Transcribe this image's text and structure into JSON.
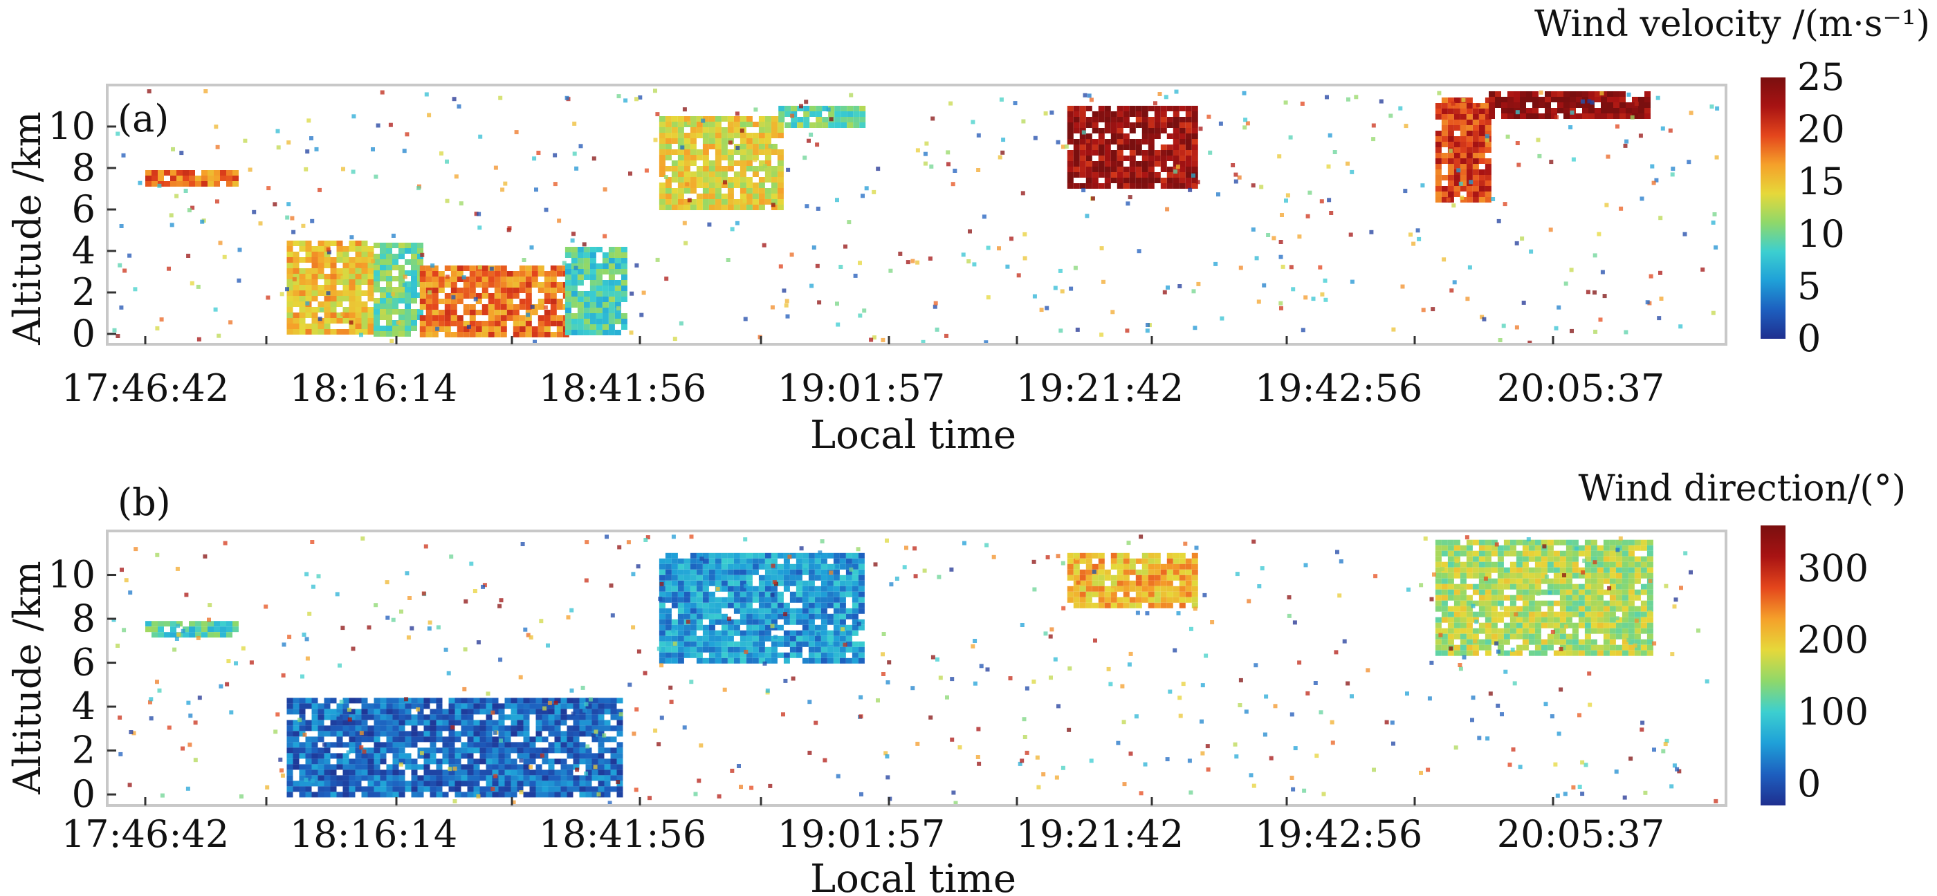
{
  "colormap": [
    "#1f2f8f",
    "#1d5fbf",
    "#1fa0d8",
    "#3ccfd0",
    "#8fd86a",
    "#e6d83a",
    "#f5a02a",
    "#e4461c",
    "#a81313",
    "#7a0f0f"
  ],
  "chart_data": [
    {
      "panel_label": "(a)",
      "type": "heatmap",
      "variable": "wind velocity",
      "colorbar_title": "Wind velocity /(m·s⁻¹)",
      "colorbar_ticks": [
        0,
        5,
        10,
        15,
        20,
        25
      ],
      "clim": [
        0,
        25
      ],
      "xlabel": "Local time",
      "ylabel": "Altitude /km",
      "xticks": [
        "17:46:42",
        "18:16:14",
        "18:41:56",
        "19:01:57",
        "19:21:42",
        "19:42:56",
        "20:05:37"
      ],
      "yticks": [
        0,
        2,
        4,
        6,
        8,
        10
      ],
      "ylim": [
        -0.5,
        12
      ],
      "grid": false,
      "top_boundary_km": [
        8,
        7.8,
        4.5,
        4.3,
        3.2,
        4.2,
        6,
        9,
        10.6,
        11,
        11,
        11,
        11,
        10.8,
        9.5,
        9.8,
        11.6,
        11.6,
        11.6
      ],
      "regions": [
        {
          "time_range": [
            "17:46:42",
            "17:58:00"
          ],
          "alt_km": [
            7.2,
            7.9
          ],
          "value": 18
        },
        {
          "time_range": [
            "18:05:00",
            "18:16:14"
          ],
          "alt_km": [
            0,
            4.5
          ],
          "value": 15
        },
        {
          "time_range": [
            "18:16:14",
            "18:21:00"
          ],
          "alt_km": [
            0,
            4.4
          ],
          "value": 10
        },
        {
          "time_range": [
            "18:21:00",
            "18:36:00"
          ],
          "alt_km": [
            0,
            3.3
          ],
          "value": 18
        },
        {
          "time_range": [
            "18:36:00",
            "18:41:56"
          ],
          "alt_km": [
            0,
            4.2
          ],
          "value": 9
        },
        {
          "time_range": [
            "18:45:00",
            "18:55:00"
          ],
          "alt_km": [
            6,
            10.5
          ],
          "value": 14
        },
        {
          "time_range": [
            "18:55:00",
            "19:01:57"
          ],
          "alt_km": [
            10,
            11
          ],
          "value": 10
        },
        {
          "time_range": [
            "19:19:00",
            "19:30:00"
          ],
          "alt_km": [
            7,
            11
          ],
          "value": 23
        },
        {
          "time_range": [
            "19:52:00",
            "19:57:00"
          ],
          "alt_km": [
            6.5,
            11.4
          ],
          "value": 20
        },
        {
          "time_range": [
            "19:57:00",
            "20:12:00"
          ],
          "alt_km": [
            10.6,
            11.7
          ],
          "value": 24
        }
      ]
    },
    {
      "panel_label": "(b)",
      "type": "heatmap",
      "variable": "wind direction",
      "colorbar_title": "Wind direction/(°)",
      "colorbar_ticks": [
        0,
        100,
        200,
        300
      ],
      "clim": [
        -30,
        360
      ],
      "xlabel": "Local time",
      "ylabel": "Altitude /km",
      "xticks": [
        "17:46:42",
        "18:16:14",
        "18:41:56",
        "19:01:57",
        "19:21:42",
        "19:42:56",
        "20:05:37"
      ],
      "yticks": [
        0,
        2,
        4,
        6,
        8,
        10
      ],
      "ylim": [
        -0.5,
        12
      ],
      "grid": false,
      "top_boundary_km": [
        8,
        7.8,
        4.5,
        4.3,
        3.2,
        4.2,
        6,
        9,
        10.6,
        11,
        11,
        11,
        11,
        10.8,
        9.5,
        9.8,
        11.6,
        11.6,
        11.6
      ],
      "regions": [
        {
          "time_range": [
            "17:46:42",
            "17:58:00"
          ],
          "alt_km": [
            7.2,
            7.9
          ],
          "value": 110
        },
        {
          "time_range": [
            "18:05:00",
            "18:41:56"
          ],
          "alt_km": [
            0,
            4.4
          ],
          "value": 20
        },
        {
          "time_range": [
            "18:45:00",
            "19:01:57"
          ],
          "alt_km": [
            6,
            11
          ],
          "value": 55
        },
        {
          "time_range": [
            "19:19:00",
            "19:30:00"
          ],
          "alt_km": [
            8.5,
            11
          ],
          "value": 215
        },
        {
          "time_range": [
            "19:52:00",
            "20:12:00"
          ],
          "alt_km": [
            6.5,
            11.6
          ],
          "value": 160
        }
      ]
    }
  ]
}
